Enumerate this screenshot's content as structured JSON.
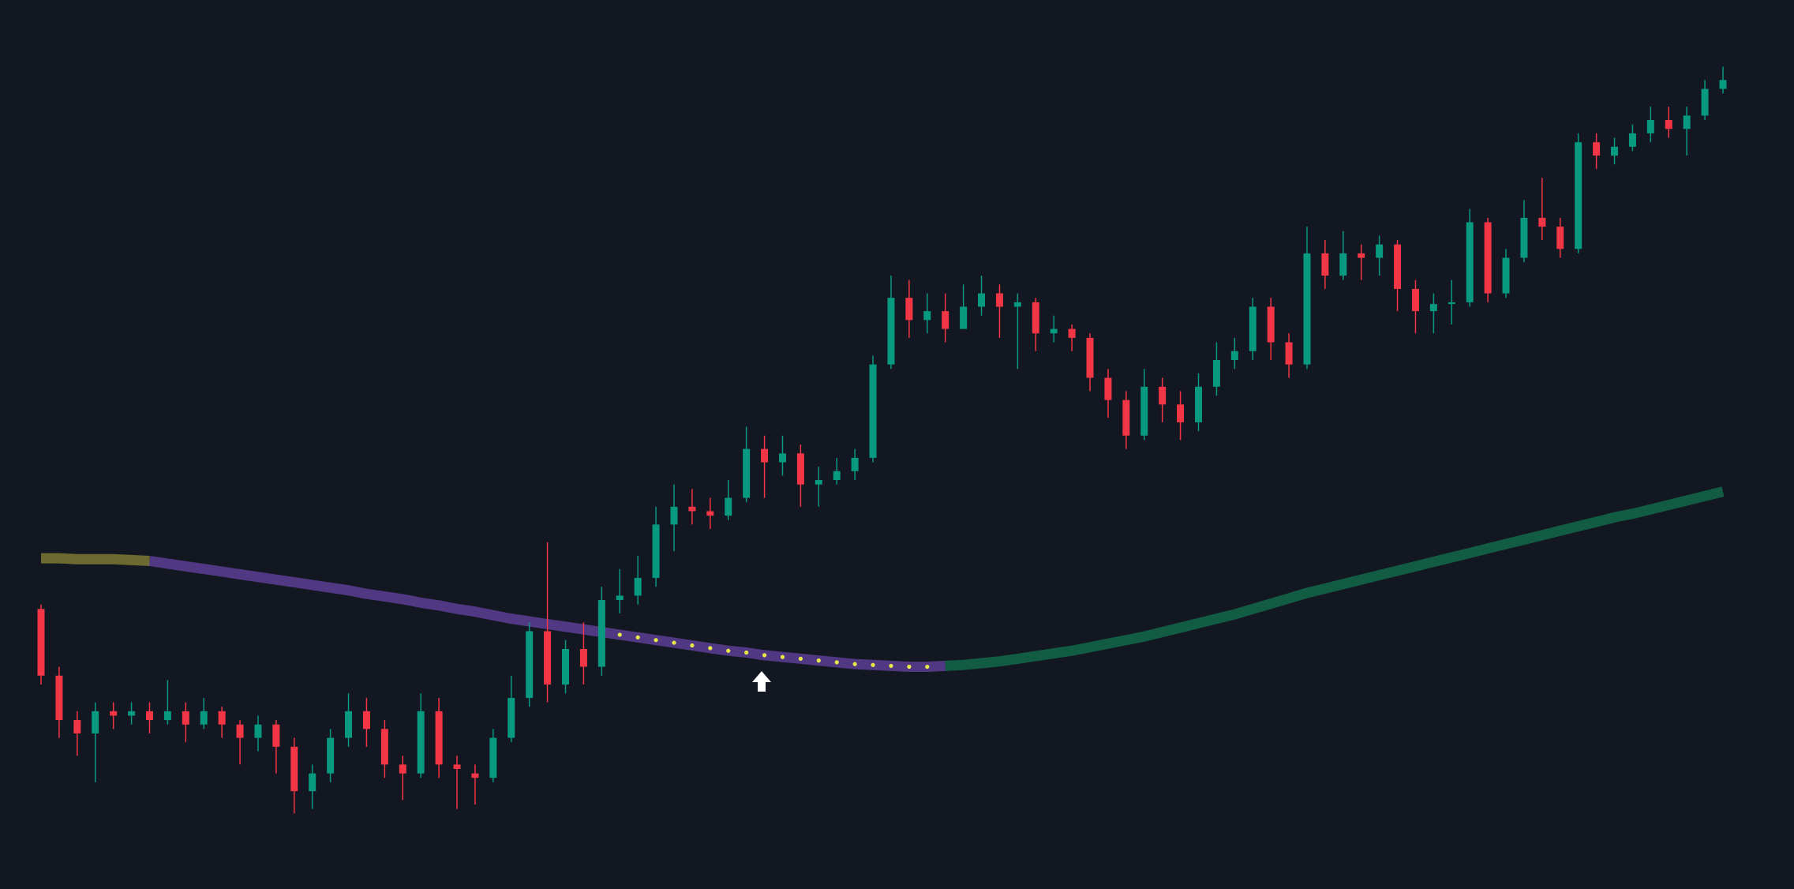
{
  "chart_data": {
    "type": "candlestick",
    "up_color": "#089981",
    "down_color": "#f23645",
    "ylim": [
      0,
      100
    ],
    "open": [
      31.5,
      24,
      19,
      17.5,
      20,
      19.5,
      20,
      19,
      20,
      18.5,
      20,
      18.5,
      17,
      18.5,
      16,
      11,
      13,
      17,
      20,
      18,
      14,
      13,
      20,
      14,
      13,
      12.5,
      17,
      21.5,
      29,
      23,
      27,
      25,
      32.5,
      33,
      35,
      41,
      43,
      42.5,
      42,
      44,
      49.5,
      48,
      49,
      45.5,
      46,
      47,
      48.5,
      59,
      66.5,
      64,
      65,
      63,
      65.5,
      67,
      65.5,
      66,
      62.5,
      63,
      62,
      57.5,
      55,
      51,
      56.5,
      54.5,
      52.5,
      56.5,
      59.5,
      60.5,
      65.5,
      61.5,
      59,
      71.5,
      69,
      71.5,
      71,
      72.5,
      67.5,
      65,
      65.8,
      66,
      75,
      67,
      71,
      75.5,
      74.5,
      72,
      84,
      82.5,
      83.5,
      85,
      86.5,
      85.5,
      87,
      90
    ],
    "high": [
      32,
      25,
      20,
      21,
      21,
      21,
      21,
      23.5,
      21,
      21.5,
      20.5,
      19,
      19.5,
      19,
      17,
      14,
      18,
      22,
      21.5,
      19,
      15,
      22,
      21.5,
      15,
      14,
      18,
      24,
      30,
      39,
      28,
      30,
      34,
      36,
      37.5,
      43,
      45.5,
      45,
      44,
      46,
      52,
      51,
      51,
      50,
      47.5,
      48.5,
      49.5,
      60,
      69,
      68.5,
      67,
      67,
      68,
      69,
      68,
      67,
      66.5,
      64.5,
      63.5,
      62.5,
      58.5,
      56,
      58.5,
      57.5,
      56,
      58,
      61.5,
      62,
      66.5,
      66.5,
      62.5,
      74.5,
      73,
      74,
      72.5,
      73.5,
      73,
      68.5,
      67,
      68.5,
      76.5,
      75.5,
      72,
      77.5,
      80,
      75.5,
      85,
      85,
      84.5,
      86,
      88,
      88,
      88,
      91,
      92.5
    ],
    "low": [
      23,
      17,
      15,
      12,
      18,
      18.5,
      17.5,
      18.5,
      16.5,
      18,
      17,
      14,
      15.5,
      13,
      8.5,
      9,
      12,
      16,
      16,
      12.5,
      10,
      12.5,
      12.5,
      9,
      9.5,
      12,
      16.5,
      20.5,
      21,
      22,
      23,
      24,
      31,
      32,
      34,
      38,
      41,
      40.5,
      41.5,
      43.5,
      44,
      46.5,
      43,
      43,
      45.5,
      46,
      48,
      58.5,
      62,
      62.5,
      61.5,
      63,
      64.5,
      62,
      58.5,
      60.5,
      61.5,
      60.5,
      56,
      53,
      49.5,
      50.5,
      52.5,
      50.5,
      51.5,
      55.5,
      58.5,
      59.5,
      59.5,
      57.5,
      58.5,
      67.5,
      68.5,
      68.5,
      69,
      65,
      62.5,
      62.5,
      63.5,
      65.5,
      66,
      66.5,
      70.5,
      73,
      71,
      71.5,
      81,
      81.5,
      83,
      84,
      84.5,
      82.5,
      86.5,
      89.5
    ],
    "close": [
      24,
      19,
      17.5,
      20,
      19.5,
      20,
      19,
      20,
      18.5,
      20,
      18.5,
      17,
      18.5,
      16,
      11,
      13,
      17,
      20,
      18,
      14,
      13,
      20,
      14,
      13.5,
      12.5,
      17,
      21.5,
      29,
      23,
      27,
      25,
      32.5,
      33,
      35,
      41,
      43,
      42.5,
      42,
      44,
      49.5,
      48,
      49,
      45.5,
      46,
      47,
      48.5,
      59,
      66.5,
      64,
      65,
      63,
      65.5,
      67,
      65.5,
      66,
      62.5,
      63,
      62,
      57.5,
      55,
      51,
      56.5,
      54.5,
      52.5,
      56.5,
      59.5,
      60.5,
      65.5,
      61.5,
      59,
      71.5,
      69,
      71.5,
      71,
      72.5,
      67.5,
      65,
      65.8,
      66,
      75,
      67,
      71,
      75.5,
      74.5,
      72,
      84,
      82.5,
      83.5,
      85,
      86.5,
      85.5,
      87,
      90,
      91
    ],
    "series": [
      {
        "type": "band",
        "color": "#a8a23a",
        "values": [
          37.2,
          37.2,
          37.1,
          37.1,
          37.1,
          37.0,
          36.9,
          null,
          null,
          null,
          null,
          null,
          null,
          null,
          null,
          null,
          null,
          null,
          null,
          null,
          null,
          null,
          null,
          null,
          null,
          null,
          null,
          null,
          null,
          null,
          null,
          null,
          null,
          null,
          null,
          null,
          null,
          null,
          null,
          null,
          null,
          null,
          null,
          null,
          null,
          null,
          null,
          null,
          null,
          null,
          null,
          null,
          null,
          null,
          null,
          null,
          null,
          null,
          null,
          null,
          null,
          null,
          null,
          null,
          null,
          null,
          null,
          null,
          null,
          null,
          null,
          null,
          null,
          null,
          null,
          null,
          null,
          null,
          null,
          null,
          null,
          null,
          null,
          null,
          null,
          null,
          null,
          null,
          null,
          null,
          null,
          null,
          null,
          null
        ]
      },
      {
        "type": "band",
        "color": "#7b4fc4",
        "values": [
          null,
          null,
          null,
          null,
          null,
          null,
          36.9,
          36.6,
          36.3,
          36.0,
          35.7,
          35.4,
          35.1,
          34.8,
          34.5,
          34.2,
          33.9,
          33.6,
          33.2,
          32.9,
          32.6,
          32.2,
          31.9,
          31.5,
          31.2,
          30.8,
          30.4,
          30.1,
          29.8,
          29.5,
          29.2,
          28.9,
          28.6,
          28.3,
          28.0,
          27.7,
          27.4,
          27.1,
          26.8,
          26.6,
          26.3,
          26.1,
          25.9,
          25.7,
          25.5,
          25.3,
          25.2,
          25.1,
          25.0,
          25.0,
          25.1,
          null,
          null,
          null,
          null,
          null,
          null,
          null,
          null,
          null,
          null,
          null,
          null,
          null,
          null,
          null,
          null,
          null,
          null,
          null,
          null,
          null,
          null,
          null,
          null,
          null,
          null,
          null,
          null,
          null,
          null,
          null,
          null,
          null,
          null,
          null,
          null,
          null,
          null,
          null,
          null,
          null,
          null,
          null
        ]
      },
      {
        "type": "band",
        "color": "#128a5c",
        "values": [
          null,
          null,
          null,
          null,
          null,
          null,
          null,
          null,
          null,
          null,
          null,
          null,
          null,
          null,
          null,
          null,
          null,
          null,
          null,
          null,
          null,
          null,
          null,
          null,
          null,
          null,
          null,
          null,
          null,
          null,
          null,
          null,
          null,
          null,
          null,
          null,
          null,
          null,
          null,
          null,
          null,
          null,
          null,
          null,
          null,
          null,
          null,
          null,
          null,
          null,
          25.1,
          25.2,
          25.4,
          25.6,
          25.9,
          26.2,
          26.5,
          26.8,
          27.2,
          27.6,
          28.0,
          28.4,
          28.9,
          29.4,
          29.9,
          30.4,
          30.9,
          31.5,
          32.1,
          32.7,
          33.3,
          33.8,
          34.3,
          34.8,
          35.3,
          35.8,
          36.3,
          36.8,
          37.3,
          37.8,
          38.3,
          38.8,
          39.3,
          39.8,
          40.3,
          40.8,
          41.3,
          41.8,
          42.2,
          42.7,
          43.2,
          43.7,
          44.2,
          44.7
        ]
      },
      {
        "type": "dots",
        "color": "#e8e84a",
        "values": [
          null,
          null,
          null,
          null,
          null,
          null,
          null,
          null,
          null,
          null,
          null,
          null,
          null,
          null,
          null,
          null,
          null,
          null,
          null,
          null,
          null,
          null,
          null,
          null,
          null,
          null,
          null,
          null,
          null,
          null,
          null,
          28.9,
          28.6,
          28.3,
          28.0,
          27.7,
          27.4,
          27.1,
          26.8,
          26.6,
          26.3,
          26.1,
          25.9,
          25.7,
          25.5,
          25.3,
          25.2,
          25.1,
          25.0,
          25.0,
          null,
          null,
          null,
          null,
          null,
          null,
          null,
          null,
          null,
          null,
          null,
          null,
          null,
          null,
          null,
          null,
          null,
          null,
          null,
          null,
          null,
          null,
          null,
          null,
          null,
          null,
          null,
          null,
          null,
          null,
          null,
          null,
          null,
          null,
          null,
          null,
          null,
          null,
          null,
          null,
          null,
          null,
          null,
          null
        ]
      }
    ]
  }
}
